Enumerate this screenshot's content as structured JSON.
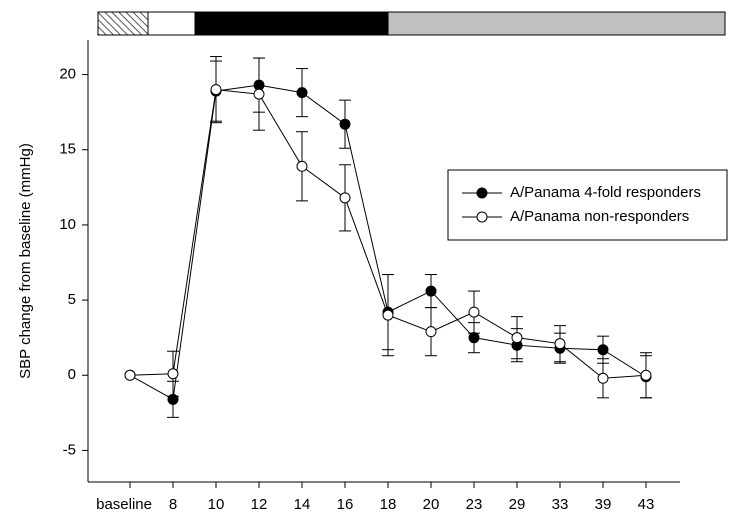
{
  "chart_data": {
    "type": "line",
    "y_label": "SBP change from baseline (mmHg)",
    "categories": [
      "baseline",
      "8",
      "10",
      "12",
      "14",
      "16",
      "18",
      "20",
      "23",
      "29",
      "33",
      "39",
      "43"
    ],
    "series": [
      {
        "name": "A/Panama 4-fold responders",
        "color": "#000000",
        "marker_fill": "#000000",
        "values": [
          0,
          -1.6,
          18.9,
          19.3,
          18.8,
          16.7,
          4.2,
          5.6,
          2.5,
          2.0,
          1.8,
          1.7,
          -0.1
        ],
        "errors": [
          null,
          1.2,
          2.0,
          1.8,
          1.6,
          1.6,
          2.5,
          1.1,
          1.0,
          1.1,
          1.0,
          0.9,
          1.4
        ]
      },
      {
        "name": "A/Panama non-responders",
        "color": "#000000",
        "marker_fill": "#ffffff",
        "values": [
          0,
          0.1,
          19.0,
          18.7,
          13.9,
          11.8,
          4.0,
          2.9,
          4.2,
          2.5,
          2.1,
          -0.2,
          0.0
        ],
        "errors": [
          null,
          1.5,
          2.2,
          2.4,
          2.3,
          2.2,
          2.7,
          1.6,
          1.4,
          1.4,
          1.2,
          1.3,
          1.5
        ]
      }
    ],
    "ylim": [
      -7.1,
      22.3
    ],
    "yticks": [
      -5,
      0,
      5,
      10,
      15,
      20
    ],
    "grid": false
  }
}
